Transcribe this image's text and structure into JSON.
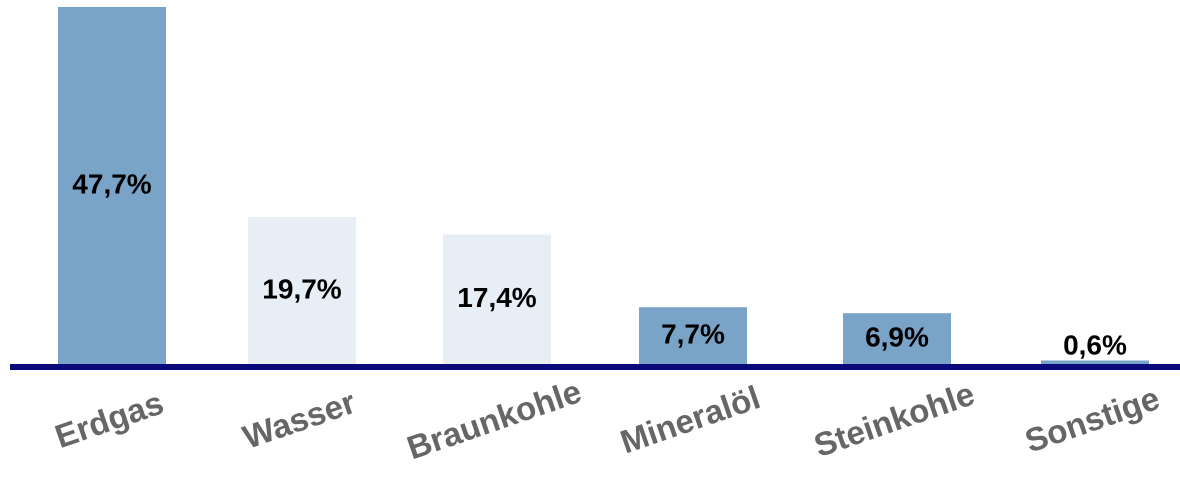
{
  "chart_data": {
    "type": "bar",
    "categories": [
      "Erdgas",
      "Wasser",
      "Braunkohle",
      "Mineralöl",
      "Steinkohle",
      "Sonstige"
    ],
    "values": [
      47.7,
      19.7,
      17.4,
      7.7,
      6.9,
      0.6
    ],
    "value_labels": [
      "47,7%",
      "19,7%",
      "17,4%",
      "7,7%",
      "6,9%",
      "0,6%"
    ],
    "colors": [
      "#79a3c7",
      "#e8eef6",
      "#e8eef6",
      "#79a3c7",
      "#79a3c7",
      "#79a3c7"
    ]
  }
}
